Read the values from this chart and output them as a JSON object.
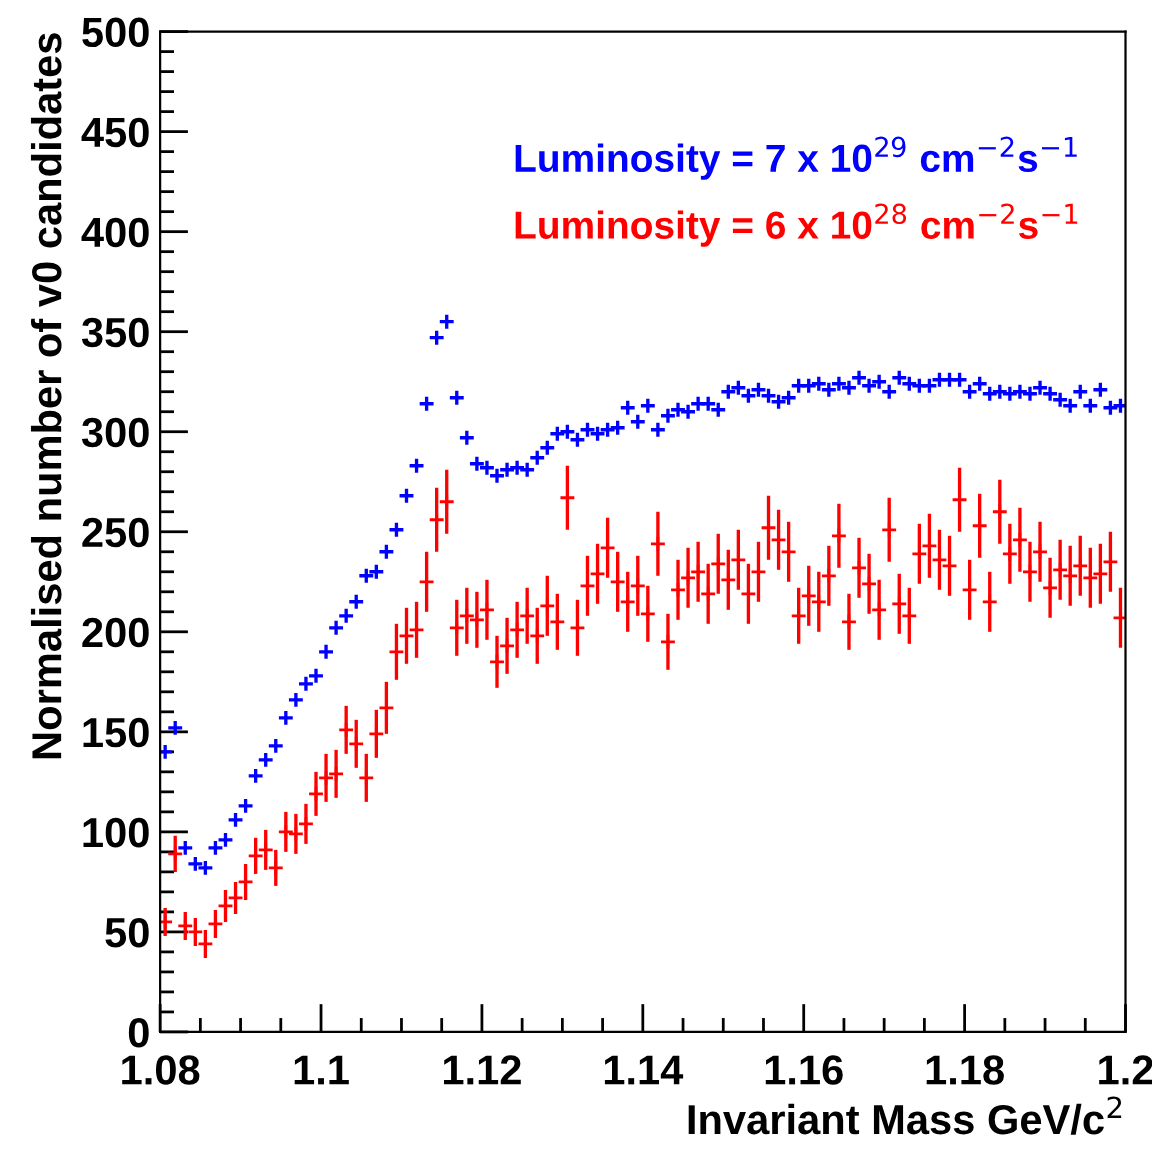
{
  "chart_data": {
    "type": "scatter",
    "xlabel": "Invariant Mass GeV/c$^{2}$",
    "ylabel": "Normalised number of v0 candidates",
    "x": [
      1.080625,
      1.081875,
      1.083125,
      1.084375,
      1.085625,
      1.086875,
      1.088125,
      1.089375,
      1.090625,
      1.091875,
      1.093125,
      1.094375,
      1.095625,
      1.096875,
      1.098125,
      1.099375,
      1.100625,
      1.101875,
      1.103125,
      1.104375,
      1.105625,
      1.106875,
      1.108125,
      1.109375,
      1.110625,
      1.111875,
      1.113125,
      1.114375,
      1.115625,
      1.116875,
      1.118125,
      1.119375,
      1.120625,
      1.121875,
      1.123125,
      1.124375,
      1.125625,
      1.126875,
      1.128125,
      1.129375,
      1.130625,
      1.131875,
      1.133125,
      1.134375,
      1.135625,
      1.136875,
      1.138125,
      1.139375,
      1.140625,
      1.141875,
      1.143125,
      1.144375,
      1.145625,
      1.146875,
      1.148125,
      1.149375,
      1.150625,
      1.151875,
      1.153125,
      1.154375,
      1.155625,
      1.156875,
      1.158125,
      1.159375,
      1.160625,
      1.161875,
      1.163125,
      1.164375,
      1.165625,
      1.166875,
      1.168125,
      1.169375,
      1.170625,
      1.171875,
      1.173125,
      1.174375,
      1.175625,
      1.176875,
      1.178125,
      1.179375,
      1.180625,
      1.181875,
      1.183125,
      1.184375,
      1.185625,
      1.186875,
      1.188125,
      1.189375,
      1.190625,
      1.191875,
      1.193125,
      1.194375,
      1.195625,
      1.196875,
      1.198125,
      1.199375
    ],
    "series": [
      {
        "name": "Luminosity = 7 x 10$^{29}$ cm$^{−2}$s$^{−1}$",
        "color": "#0000ff",
        "values": [
          140,
          152,
          92,
          84,
          82,
          92,
          96,
          106,
          113,
          128,
          136,
          143,
          157,
          166,
          174,
          178,
          190,
          202,
          208,
          215,
          228,
          230,
          240,
          251,
          268,
          283,
          314,
          347,
          355,
          317,
          297,
          284,
          282,
          278,
          281,
          282,
          281,
          287,
          292,
          299,
          300,
          296,
          301,
          299,
          301,
          302,
          312,
          305,
          313,
          301,
          308,
          311,
          310,
          314,
          314,
          311,
          320,
          322,
          318,
          321,
          318,
          315,
          317,
          323,
          323,
          324,
          321,
          324,
          322,
          327,
          323,
          325,
          320,
          327,
          324,
          323,
          323,
          326,
          326,
          326,
          320,
          324,
          319,
          320,
          319,
          320,
          319,
          322,
          319,
          316,
          313,
          320,
          313,
          321,
          312,
          313
        ]
      },
      {
        "name": "Luminosity = 6 x 10$^{28}$ cm$^{−2}$s$^{−1}$",
        "color": "#ff0000",
        "values": [
          55,
          89,
          53,
          50,
          44,
          54,
          63,
          67,
          75,
          88,
          91,
          82,
          100,
          99,
          104,
          119,
          127,
          129,
          151,
          144,
          127,
          149,
          162,
          190,
          198,
          201,
          225,
          256,
          265,
          202,
          208,
          206,
          211,
          185,
          193,
          201,
          208,
          198,
          213,
          205,
          267,
          202,
          223,
          229,
          242,
          225,
          215,
          223,
          209,
          244,
          195,
          221,
          227,
          230,
          219,
          234,
          226,
          236,
          219,
          230,
          252,
          246,
          240,
          208,
          218,
          215,
          228,
          248,
          205,
          232,
          224,
          211,
          251,
          214,
          208,
          239,
          243,
          236,
          233,
          266,
          221,
          253,
          215,
          260,
          239,
          246,
          230,
          240,
          222,
          231,
          228,
          233,
          227,
          229,
          235,
          207
        ],
        "errors": [
          7,
          9,
          7,
          7,
          7,
          7,
          8,
          8,
          9,
          9,
          10,
          9,
          10,
          10,
          10,
          11,
          12,
          12,
          12,
          12,
          12,
          12,
          13,
          14,
          14,
          14,
          15,
          16,
          16,
          14,
          14,
          14,
          15,
          13,
          14,
          14,
          14,
          14,
          15,
          14,
          16,
          14,
          15,
          15,
          15,
          15,
          15,
          15,
          14,
          16,
          14,
          15,
          15,
          15,
          15,
          15,
          15,
          15,
          15,
          15,
          16,
          15,
          15,
          14,
          15,
          15,
          15,
          16,
          14,
          15,
          15,
          15,
          16,
          15,
          14,
          15,
          16,
          15,
          15,
          16,
          15,
          16,
          15,
          16,
          15,
          16,
          15,
          15,
          15,
          15,
          15,
          15,
          15,
          15,
          15,
          15
        ]
      }
    ],
    "marker": "cross",
    "xlim": [
      1.08,
      1.2
    ],
    "xticks": [
      1.08,
      1.1,
      1.12,
      1.14,
      1.16,
      1.18,
      1.2
    ],
    "ylim": [
      0,
      500
    ],
    "yticks": [
      0,
      50,
      100,
      150,
      200,
      250,
      300,
      350,
      400,
      450,
      500
    ],
    "legend": "top right"
  }
}
